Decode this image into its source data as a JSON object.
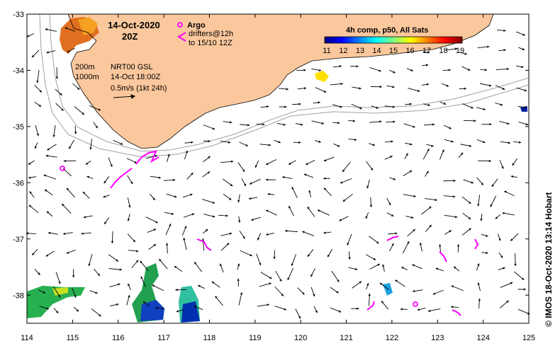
{
  "map": {
    "date_title": "14-Oct-2020",
    "time_title": "20Z",
    "model_label": "NRT00 GSL",
    "model_time": "14-Oct 18:00Z",
    "scale_label": "0.5m/s (1kt 24h)",
    "isobath_labels": [
      "200m",
      "1000m"
    ],
    "credit": "© IMOS 18-Oct-2020 13:14 Hobart",
    "colors": {
      "land": "#fbc89d",
      "argo": "#ff00ff",
      "drifter": "#ff00ff",
      "isobath": "#a0a0a0"
    }
  },
  "legend": {
    "argo_label": "Argo",
    "drifter_label": "drifters@12h",
    "drifter_sublabel": "to 15/10 12Z",
    "colorbar_title": "4h comp, p50, All Sats",
    "colorbar_ticks": [
      "11",
      "12",
      "13",
      "14",
      "15",
      "16",
      "17",
      "18",
      "19"
    ],
    "colormap": [
      "#00007f",
      "#0000ff",
      "#007fff",
      "#00ffff",
      "#7fff7f",
      "#ffff00",
      "#ff7f00",
      "#ff0000",
      "#7f0000"
    ]
  },
  "axes": {
    "x_ticks": [
      "114",
      "115",
      "116",
      "117",
      "118",
      "119",
      "120",
      "121",
      "122",
      "123",
      "124",
      "125"
    ],
    "y_ticks": [
      "-33",
      "-34",
      "-35",
      "-36",
      "-37",
      "-38"
    ],
    "lon_range": [
      114,
      125
    ],
    "lat_range": [
      -38.5,
      -33
    ]
  }
}
